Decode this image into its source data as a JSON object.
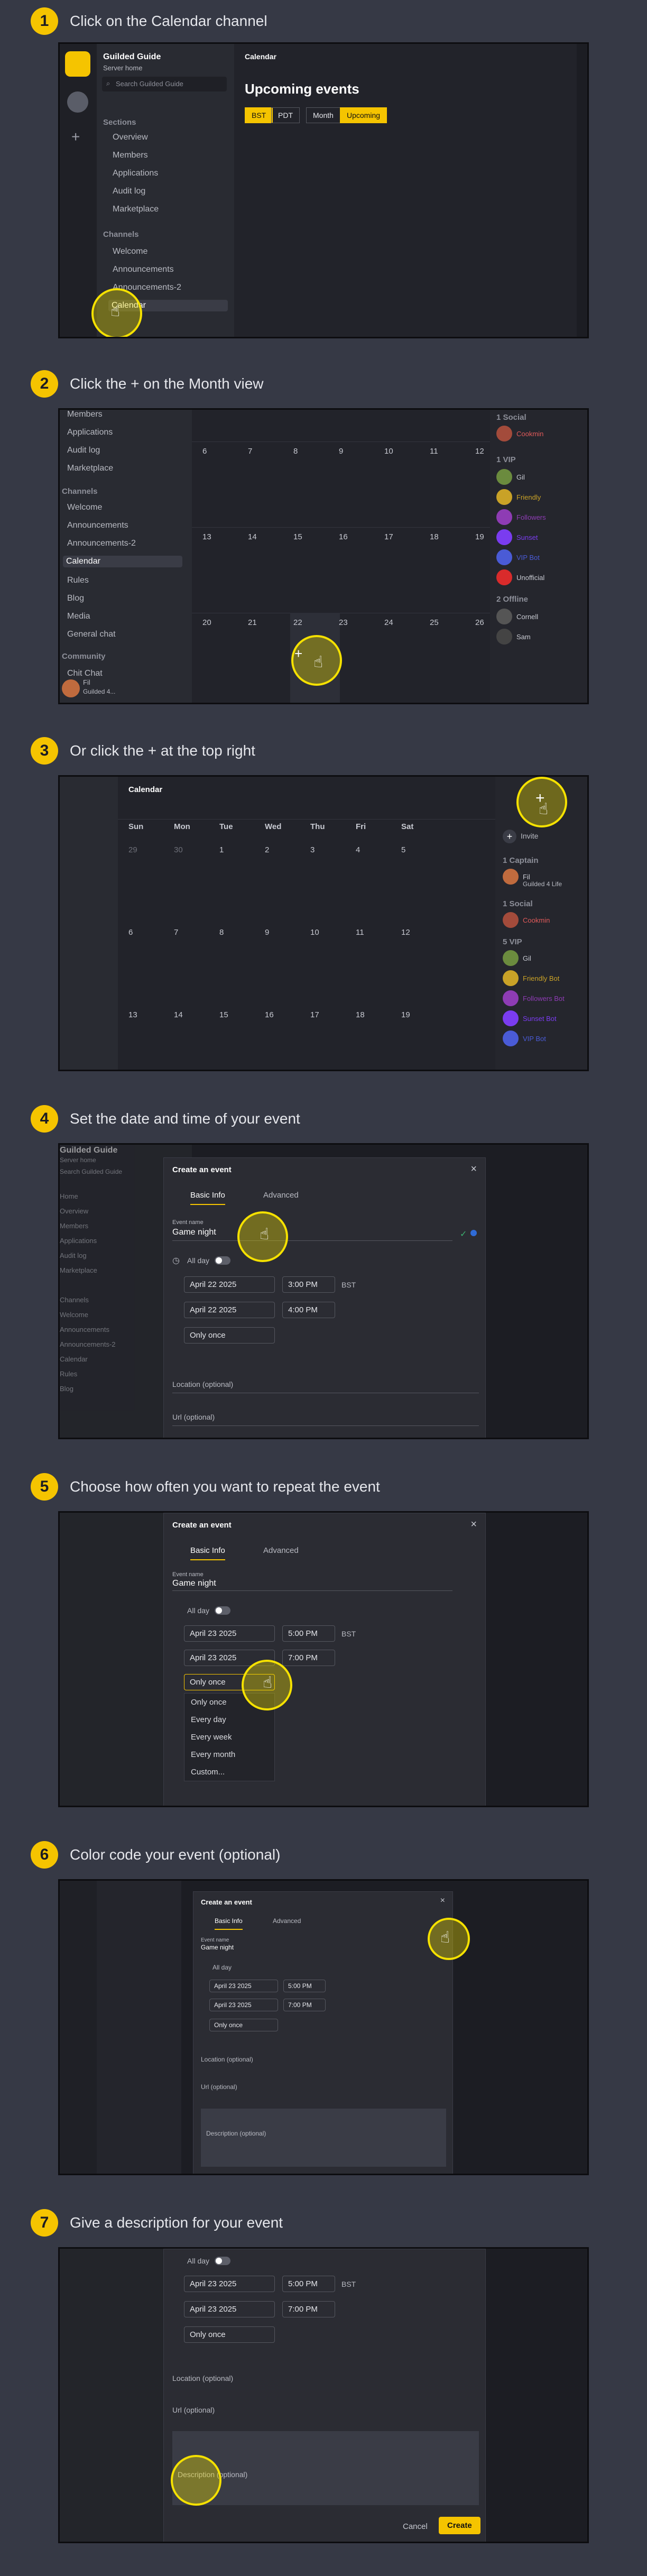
{
  "steps": [
    {
      "num": "1",
      "text": "Click on the Calendar channel"
    },
    {
      "num": "2",
      "text": "Click the + on the Month view"
    },
    {
      "num": "3",
      "text": "Or click the + at the top right"
    },
    {
      "num": "4",
      "text": "Set the date and time of your event"
    },
    {
      "num": "5",
      "text": "Choose how often you want to repeat the event"
    },
    {
      "num": "6",
      "text": "Color code your event (optional)"
    },
    {
      "num": "7",
      "text": "Give a description for your event"
    }
  ],
  "s1": {
    "server_name": "Guilded Guide",
    "server_sub": "Server home",
    "search_placeholder": "Search Guilded Guide",
    "sections_label": "Sections",
    "sections": [
      "Overview",
      "Members",
      "Applications",
      "Audit log",
      "Marketplace"
    ],
    "channels_label": "Channels",
    "channels": [
      "Welcome",
      "Announcements",
      "Announcements-2",
      "Calendar"
    ],
    "header": "Calendar",
    "title": "Upcoming events",
    "tz_a": "BST",
    "tz_b": "PDT",
    "view_a": "Month",
    "view_b": "Upcoming"
  },
  "s2": {
    "sidebar": [
      "Members",
      "Applications",
      "Audit log",
      "Marketplace"
    ],
    "channels_label": "Channels",
    "channels": [
      "Welcome",
      "Announcements",
      "Announcements-2",
      "Calendar",
      "Rules",
      "Blog",
      "Media",
      "General chat"
    ],
    "community_label": "Community",
    "chit_chat": "Chit Chat",
    "user": "Fil",
    "user_sub": "Guilded 4...",
    "week1": [
      "6",
      "7",
      "8",
      "9",
      "10",
      "11",
      "12"
    ],
    "week2": [
      "13",
      "14",
      "15",
      "16",
      "17",
      "18",
      "19"
    ],
    "week3": [
      "20",
      "21",
      "22",
      "23",
      "24",
      "25",
      "26"
    ],
    "roles": [
      "1 Social",
      "1 VIP",
      "2 Offline"
    ],
    "members": [
      "Cookmin",
      "Gil",
      "Friendly",
      "Followers",
      "Sunset",
      "VIP Bot",
      "Unofficial",
      "Cornell",
      "Sam"
    ]
  },
  "s3": {
    "header": "Calendar",
    "days": [
      "Sun",
      "Mon",
      "Tue",
      "Wed",
      "Thu",
      "Fri",
      "Sat"
    ],
    "week0": [
      "29",
      "30",
      "1",
      "2",
      "3",
      "4",
      "5"
    ],
    "week1": [
      "6",
      "7",
      "8",
      "9",
      "10",
      "11",
      "12"
    ],
    "week2": [
      "13",
      "14",
      "15",
      "16",
      "17",
      "18",
      "19"
    ],
    "invite": "Invite",
    "roles": [
      "1 Captain",
      "1 Social",
      "5 VIP"
    ],
    "captain": "Fil",
    "captain_sub": "Guilded 4 Life",
    "members": [
      "Cookmin",
      "Gil",
      "Friendly Bot",
      "Followers Bot",
      "Sunset Bot",
      "VIP Bot"
    ]
  },
  "modal": {
    "title": "Create an event",
    "tab_basic": "Basic Info",
    "tab_advanced": "Advanced",
    "event_name_label": "Event name",
    "event_name": "Game night",
    "all_day": "All day",
    "start_date": "April 22 2025",
    "start_time": "3:00 PM",
    "end_date": "April 22 2025",
    "end_time": "4:00 PM",
    "tz": "BST",
    "repeat": "Only once",
    "location": "Location (optional)",
    "url": "Url (optional)",
    "description_placeholder": "Description (optional)",
    "cancel": "Cancel",
    "create": "Create"
  },
  "s5": {
    "start_date": "April 23 2025",
    "start_time": "5:00 PM",
    "end_date": "April 23 2025",
    "end_time": "7:00 PM",
    "repeat_options": [
      "Only once",
      "Every day",
      "Every week",
      "Every month",
      "Custom..."
    ]
  },
  "s4_left": [
    "Guilded Guide",
    "Server home",
    "Search Guilded Guide",
    "Home",
    "Overview",
    "Members",
    "Applications",
    "Audit log",
    "Marketplace",
    "Channels",
    "Welcome",
    "Announcements",
    "Announcements-2",
    "Calendar",
    "Rules",
    "Blog"
  ],
  "colors": {
    "accent": "#f5c400",
    "highlight": "#f5e100",
    "bg": "#363945"
  }
}
